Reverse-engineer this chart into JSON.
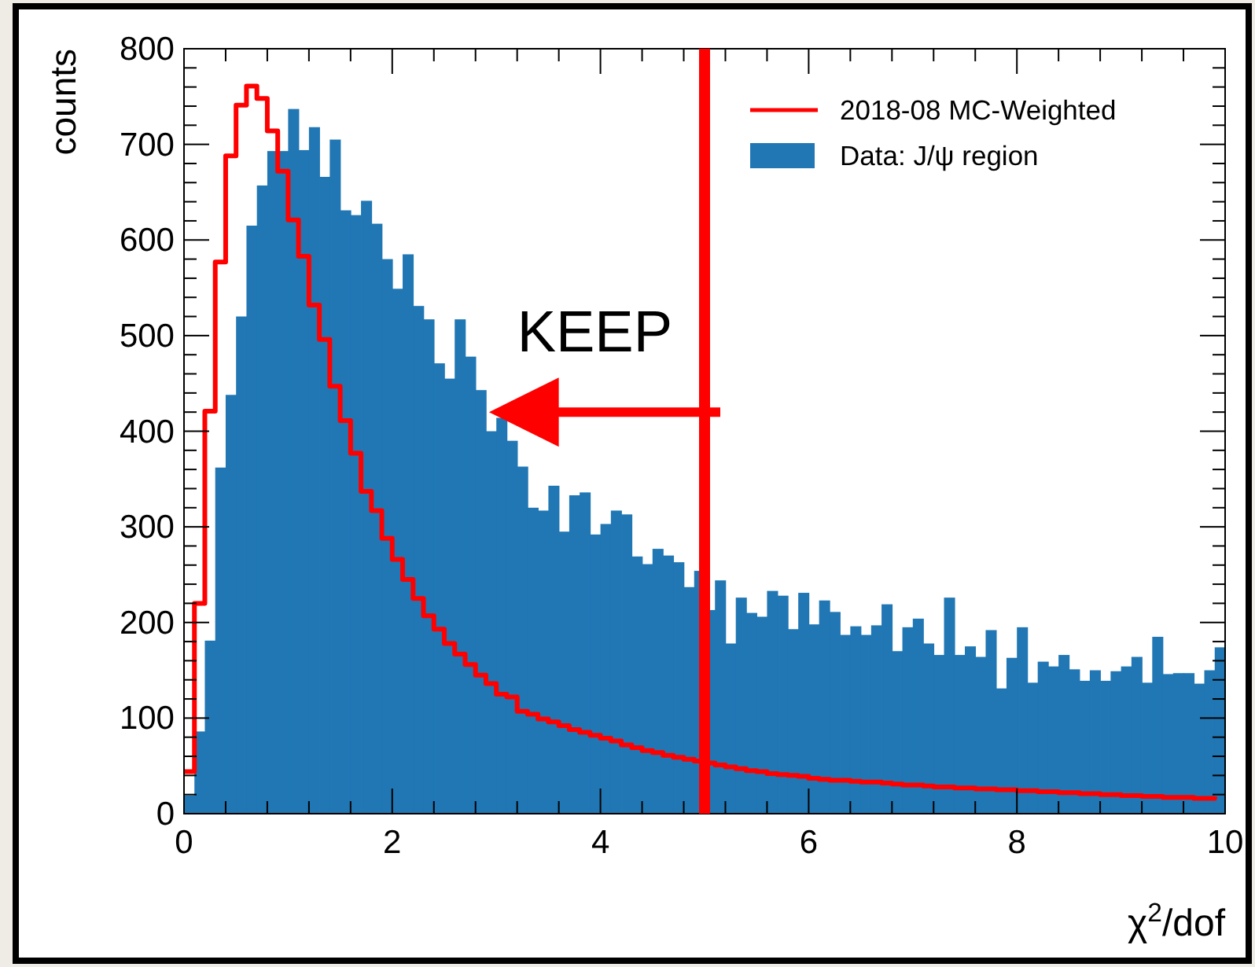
{
  "chart_data": {
    "type": "histogram",
    "xlabel": "χ$^{2}$/dof",
    "ylabel": "counts",
    "bins": [
      0,
      0.1,
      0.2,
      0.3,
      0.4,
      0.5,
      0.6,
      0.7,
      0.8,
      0.9,
      1,
      1.1,
      1.2,
      1.3,
      1.4,
      1.5,
      1.6,
      1.7,
      1.8,
      1.9,
      2,
      2.1,
      2.2,
      2.3,
      2.4,
      2.5,
      2.6,
      2.7,
      2.8,
      2.9,
      3,
      3.1,
      3.2,
      3.3,
      3.4,
      3.5,
      3.6,
      3.7,
      3.8,
      3.9,
      4,
      4.1,
      4.2,
      4.3,
      4.4,
      4.5,
      4.6,
      4.7,
      4.8,
      4.9,
      5,
      5.1,
      5.2,
      5.3,
      5.4,
      5.5,
      5.6,
      5.7,
      5.8,
      5.9,
      6,
      6.1,
      6.2,
      6.3,
      6.4,
      6.5,
      6.6,
      6.7,
      6.8,
      6.9,
      7,
      7.1,
      7.2,
      7.3,
      7.4,
      7.5,
      7.6,
      7.7,
      7.8,
      7.9,
      8,
      8.1,
      8.2,
      8.3,
      8.4,
      8.5,
      8.6,
      8.7,
      8.8,
      8.9,
      9,
      9.1,
      9.2,
      9.3,
      9.4,
      9.5,
      9.6,
      9.7,
      9.8,
      9.9,
      10
    ],
    "series": [
      {
        "name": "2018-08 MC-Weighted",
        "type": "step",
        "color": "#ff0000",
        "x": [
          0,
          0.1,
          0.2,
          0.3,
          0.4,
          0.5,
          0.6,
          0.7,
          0.8,
          0.9,
          1,
          1.1,
          1.2,
          1.3,
          1.4,
          1.5,
          1.6,
          1.7,
          1.8,
          1.9,
          2,
          2.1,
          2.2,
          2.3,
          2.4,
          2.5,
          2.6,
          2.7,
          2.8,
          2.9,
          3,
          3.1,
          3.2,
          3.3,
          3.4,
          3.5,
          3.6,
          3.7,
          3.8,
          3.9,
          4,
          4.1,
          4.2,
          4.3,
          4.4,
          4.5,
          4.6,
          4.7,
          4.8,
          4.9,
          5,
          5.1,
          5.2,
          5.3,
          5.4,
          5.5,
          5.6,
          5.7,
          5.8,
          5.9,
          6,
          6.1,
          6.2,
          6.3,
          6.4,
          6.5,
          6.6,
          6.7,
          6.8,
          6.9,
          7,
          7.1,
          7.2,
          7.3,
          7.4,
          7.5,
          7.6,
          7.7,
          7.8,
          7.9,
          8,
          8.1,
          8.2,
          8.3,
          8.4,
          8.5,
          8.6,
          8.7,
          8.8,
          8.9,
          9,
          9.1,
          9.2,
          9.3,
          9.4,
          9.5,
          9.6,
          9.7,
          9.8,
          9.9
        ],
        "values": [
          44,
          220,
          421,
          577,
          688,
          741,
          761,
          748,
          714,
          672,
          621,
          583,
          532,
          496,
          447,
          411,
          377,
          337,
          317,
          288,
          266,
          245,
          225,
          207,
          193,
          178,
          167,
          156,
          145,
          136,
          125,
          122,
          107,
          104,
          99,
          96,
          92,
          88,
          85,
          82,
          79,
          76,
          72,
          69,
          66,
          64,
          61,
          59,
          57,
          55,
          53,
          51,
          49,
          47,
          45,
          44,
          42,
          41,
          40,
          39,
          37,
          36,
          35,
          35,
          34,
          33,
          33,
          32,
          31,
          30,
          30,
          29,
          28,
          28,
          27,
          27,
          26,
          26,
          25,
          25,
          24,
          24,
          23,
          23,
          22,
          22,
          21,
          21,
          20,
          20,
          19,
          19,
          18,
          18,
          17,
          17,
          17,
          16,
          16,
          18
        ]
      },
      {
        "name": "Data: J/ψ region",
        "color": "#2077b4",
        "values": [
          19,
          86,
          181,
          362,
          438,
          520,
          615,
          657,
          693,
          693,
          737,
          694,
          718,
          666,
          705,
          631,
          626,
          641,
          617,
          580,
          549,
          585,
          531,
          517,
          471,
          455,
          517,
          478,
          443,
          400,
          414,
          390,
          363,
          320,
          317,
          343,
          295,
          333,
          336,
          292,
          303,
          317,
          313,
          269,
          261,
          277,
          270,
          263,
          237,
          254,
          213,
          244,
          178,
          226,
          210,
          206,
          233,
          228,
          193,
          231,
          198,
          223,
          211,
          187,
          196,
          187,
          197,
          219,
          170,
          195,
          204,
          178,
          166,
          226,
          166,
          175,
          164,
          192,
          131,
          163,
          195,
          137,
          159,
          154,
          166,
          151,
          139,
          150,
          139,
          149,
          154,
          164,
          137,
          185,
          146,
          147,
          147,
          136,
          150,
          174
        ]
      }
    ],
    "xlim": [
      0,
      10
    ],
    "ylim": [
      0,
      800
    ],
    "xticks": [
      0,
      {
        "value": 0.4,
        "label": null
      },
      {
        "value": 0.8,
        "label": null
      },
      {
        "value": 1.2,
        "label": null
      },
      {
        "value": 1.6,
        "label": null
      },
      2,
      {
        "value": 2.4,
        "label": null
      },
      {
        "value": 2.8,
        "label": null
      },
      {
        "value": 3.2,
        "label": null
      },
      {
        "value": 3.6,
        "label": null
      },
      4,
      {
        "value": 4.4,
        "label": null
      },
      {
        "value": 4.8,
        "label": null
      },
      {
        "value": 5.2,
        "label": null
      },
      {
        "value": 5.6,
        "label": null
      },
      6,
      {
        "value": 6.4,
        "label": null
      },
      {
        "value": 6.8,
        "label": null
      },
      {
        "value": 7.2,
        "label": null
      },
      {
        "value": 7.6,
        "label": null
      },
      8,
      {
        "value": 8.4,
        "label": null
      },
      {
        "value": 8.8,
        "label": null
      },
      {
        "value": 9.2,
        "label": null
      },
      {
        "value": 9.6,
        "label": null
      },
      10
    ],
    "yticks": [
      0,
      {
        "value": 20,
        "label": null
      },
      {
        "value": 40,
        "label": null
      },
      {
        "value": 60,
        "label": null
      },
      {
        "value": 80,
        "label": null
      },
      100,
      {
        "value": 120,
        "label": null
      },
      {
        "value": 140,
        "label": null
      },
      {
        "value": 160,
        "label": null
      },
      {
        "value": 180,
        "label": null
      },
      200,
      {
        "value": 220,
        "label": null
      },
      {
        "value": 240,
        "label": null
      },
      {
        "value": 260,
        "label": null
      },
      {
        "value": 280,
        "label": null
      },
      300,
      {
        "value": 320,
        "label": null
      },
      {
        "value": 340,
        "label": null
      },
      {
        "value": 360,
        "label": null
      },
      {
        "value": 380,
        "label": null
      },
      400,
      {
        "value": 420,
        "label": null
      },
      {
        "value": 440,
        "label": null
      },
      {
        "value": 460,
        "label": null
      },
      {
        "value": 480,
        "label": null
      },
      500,
      {
        "value": 520,
        "label": null
      },
      {
        "value": 540,
        "label": null
      },
      {
        "value": 560,
        "label": null
      },
      {
        "value": 580,
        "label": null
      },
      600,
      {
        "value": 620,
        "label": null
      },
      {
        "value": 640,
        "label": null
      },
      {
        "value": 660,
        "label": null
      },
      {
        "value": 680,
        "label": null
      },
      700,
      {
        "value": 720,
        "label": null
      },
      {
        "value": 740,
        "label": null
      },
      {
        "value": 760,
        "label": null
      },
      {
        "value": 780,
        "label": null
      },
      800
    ],
    "ref_lines": [
      {
        "axis": "x",
        "value": 5,
        "color": "#ff0000"
      }
    ],
    "annotations": [
      "KEEP"
    ],
    "legend": "top right",
    "grid": false
  }
}
